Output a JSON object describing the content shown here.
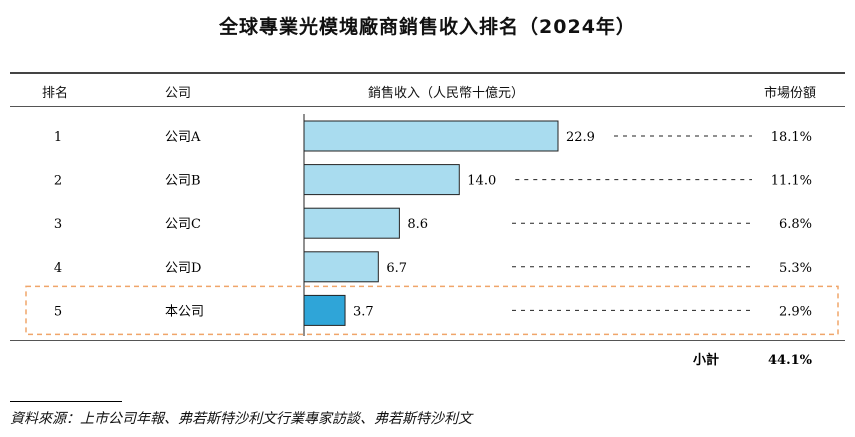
{
  "chart_data": {
    "type": "table",
    "title": "全球專業光模塊廠商銷售收入排名（2024年）",
    "columns": [
      "排名",
      "公司",
      "銷售收入（人民幣十億元）",
      "市場份額"
    ],
    "rows": [
      {
        "rank": "1",
        "company": "公司A",
        "value": 22.9,
        "value_label": "22.9",
        "share": "18.1%",
        "highlight": false
      },
      {
        "rank": "2",
        "company": "公司B",
        "value": 14.0,
        "value_label": "14.0",
        "share": "11.1%",
        "highlight": false
      },
      {
        "rank": "3",
        "company": "公司C",
        "value": 8.6,
        "value_label": "8.6",
        "share": "6.8%",
        "highlight": false
      },
      {
        "rank": "4",
        "company": "公司D",
        "value": 6.7,
        "value_label": "6.7",
        "share": "5.3%",
        "highlight": false
      },
      {
        "rank": "5",
        "company": "本公司",
        "value": 3.7,
        "value_label": "3.7",
        "share": "2.9%",
        "highlight": true
      }
    ],
    "subtotal_label": "小計",
    "subtotal_value": "44.1%",
    "bar_color": "#a9dcef",
    "highlight_bar_color": "#2fa5d8",
    "highlight_border_color": "#f0a56a"
  },
  "source": "資料來源：上市公司年報、弗若斯特沙利文行業專家訪談、弗若斯特沙利文"
}
